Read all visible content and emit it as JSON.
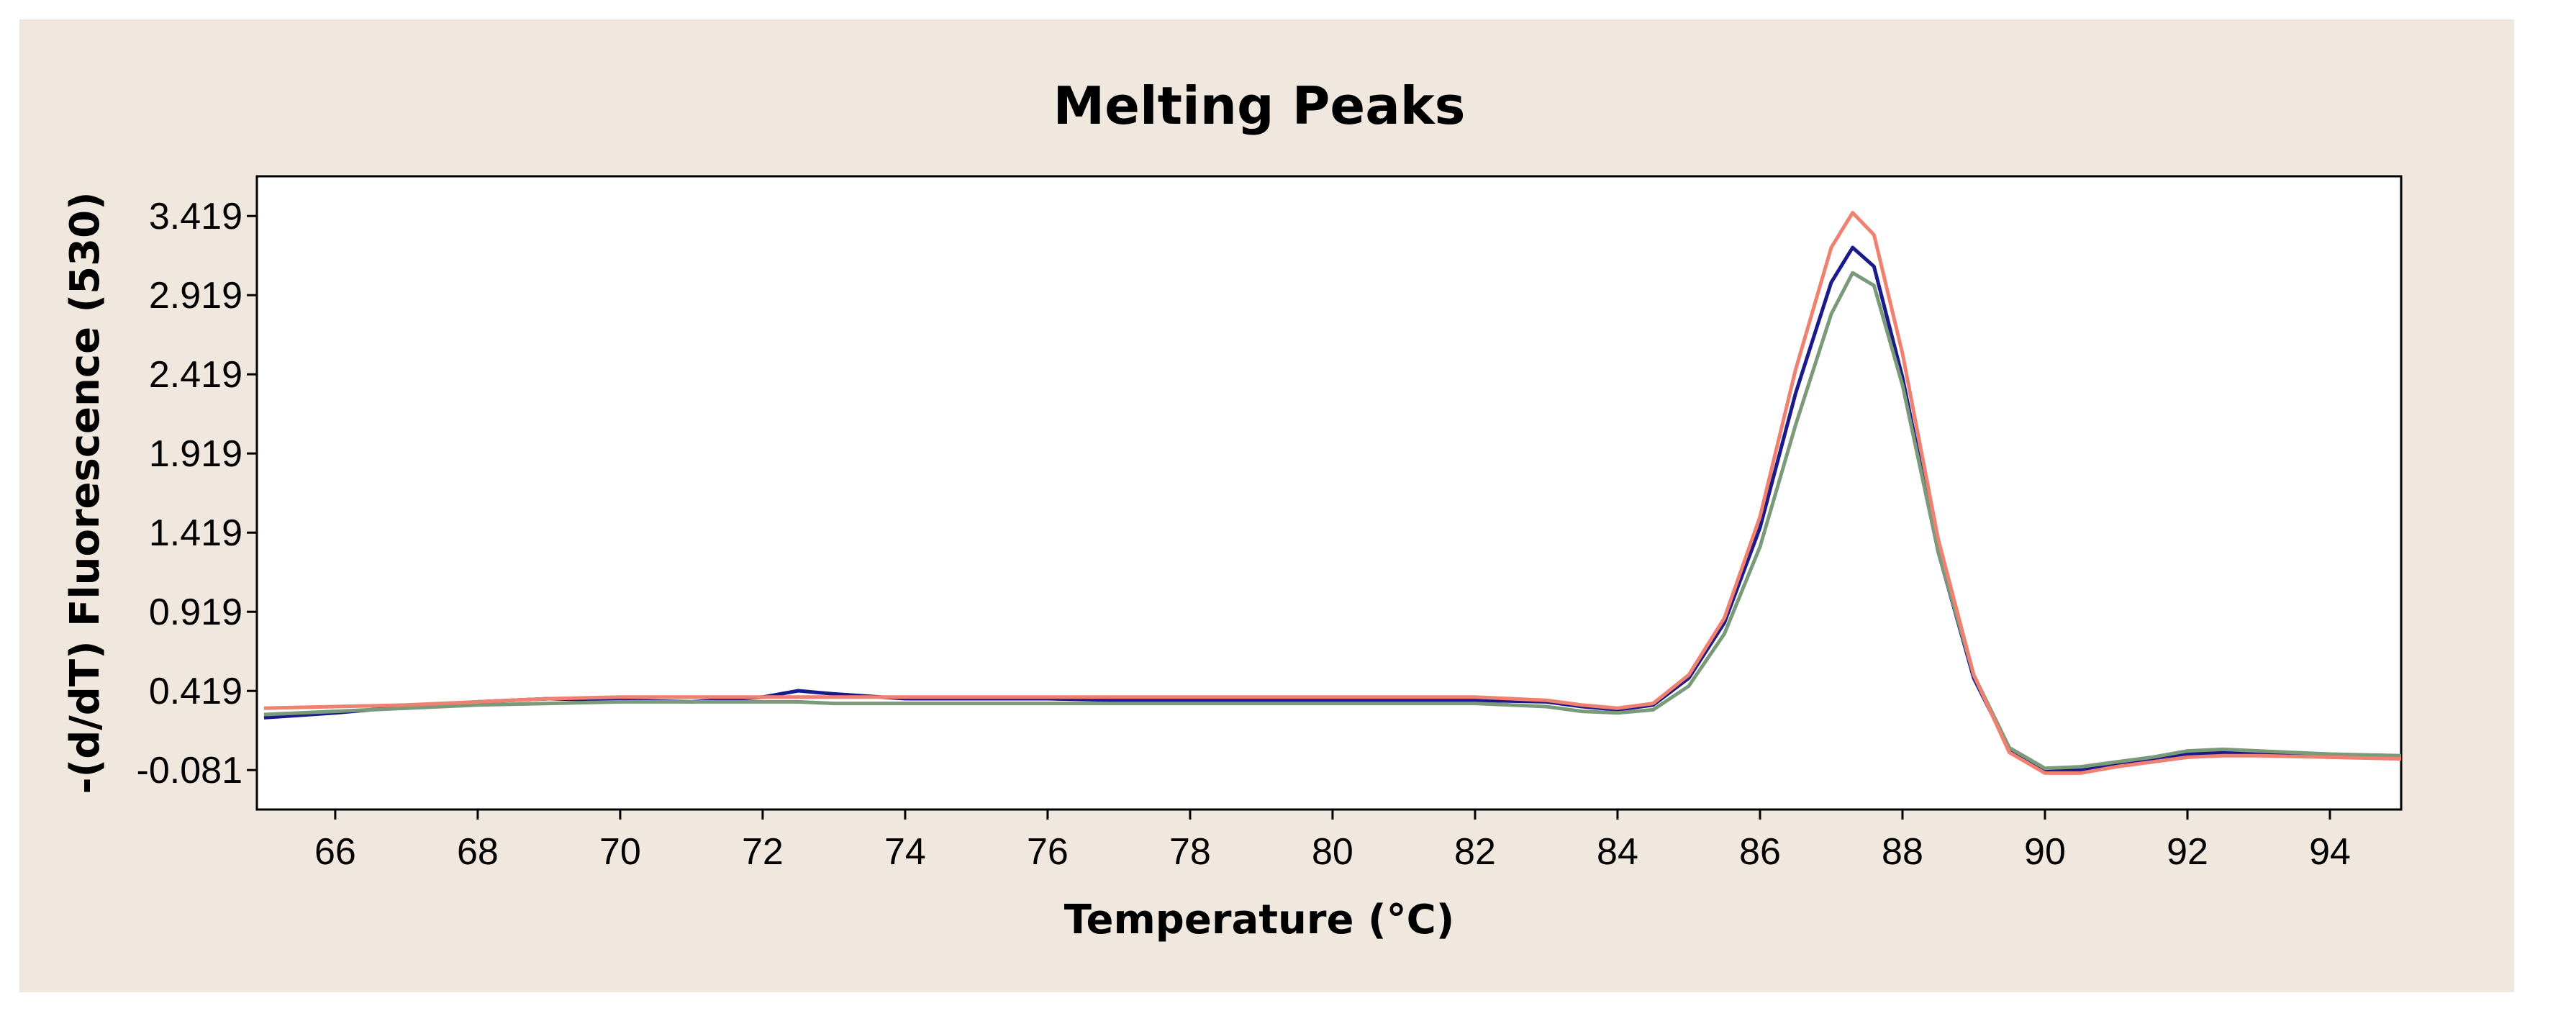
{
  "chart_data": {
    "type": "line",
    "title": "Melting Peaks",
    "xlabel": "Temperature (°C)",
    "ylabel": "-(d/dT) Fluorescence (530)",
    "xlim": [
      64.9,
      95.0
    ],
    "ylim": [
      -0.33,
      3.67
    ],
    "x_ticks": [
      66,
      68,
      70,
      72,
      74,
      76,
      78,
      80,
      82,
      84,
      86,
      88,
      90,
      92,
      94
    ],
    "x_tick_labels": [
      "66",
      "68",
      "70",
      "72",
      "74",
      "76",
      "78",
      "80",
      "82",
      "84",
      "86",
      "88",
      "90",
      "92",
      "94"
    ],
    "y_ticks": [
      -0.081,
      0.419,
      0.919,
      1.419,
      1.919,
      2.419,
      2.919,
      3.419
    ],
    "y_tick_labels": [
      "-0.081",
      "0.419",
      "0.919",
      "1.419",
      "1.919",
      "2.419",
      "2.919",
      "3.419"
    ],
    "grid": false,
    "legend": "none",
    "series": [
      {
        "color": "#1a1a8c",
        "x": [
          65,
          66,
          67,
          68,
          69,
          70,
          71,
          72,
          72.5,
          73,
          74,
          75,
          76,
          77,
          78,
          79,
          80,
          81,
          82,
          83,
          83.5,
          84,
          84.5,
          85,
          85.5,
          86,
          86.5,
          87,
          87.3,
          87.6,
          88,
          88.5,
          89,
          89.5,
          90,
          90.5,
          91,
          91.5,
          92,
          92.5,
          93,
          94,
          95
        ],
        "y": [
          0.25,
          0.28,
          0.32,
          0.35,
          0.37,
          0.36,
          0.35,
          0.38,
          0.42,
          0.4,
          0.37,
          0.37,
          0.37,
          0.36,
          0.36,
          0.36,
          0.36,
          0.36,
          0.36,
          0.35,
          0.32,
          0.3,
          0.33,
          0.5,
          0.85,
          1.45,
          2.3,
          3.0,
          3.22,
          3.1,
          2.4,
          1.3,
          0.5,
          0.05,
          -0.08,
          -0.08,
          -0.05,
          -0.02,
          0.02,
          0.03,
          0.03,
          0.01,
          0.0
        ]
      },
      {
        "color": "#7a9a7a",
        "x": [
          65,
          66,
          67,
          68,
          69,
          70,
          71,
          72,
          72.5,
          73,
          74,
          75,
          76,
          77,
          78,
          79,
          80,
          81,
          82,
          83,
          83.5,
          84,
          84.5,
          85,
          85.5,
          86,
          86.5,
          87,
          87.3,
          87.6,
          88,
          88.5,
          89,
          89.5,
          90,
          90.5,
          91,
          91.5,
          92,
          92.5,
          93,
          94,
          95
        ],
        "y": [
          0.27,
          0.29,
          0.31,
          0.33,
          0.34,
          0.35,
          0.35,
          0.35,
          0.35,
          0.34,
          0.34,
          0.34,
          0.34,
          0.34,
          0.34,
          0.34,
          0.34,
          0.34,
          0.34,
          0.32,
          0.29,
          0.28,
          0.3,
          0.45,
          0.78,
          1.33,
          2.1,
          2.8,
          3.06,
          2.98,
          2.35,
          1.3,
          0.52,
          0.06,
          -0.07,
          -0.06,
          -0.03,
          0.0,
          0.04,
          0.05,
          0.04,
          0.02,
          0.01
        ]
      },
      {
        "color": "#f08070",
        "x": [
          65,
          66,
          67,
          68,
          69,
          70,
          71,
          72,
          72.5,
          73,
          74,
          75,
          76,
          77,
          78,
          79,
          80,
          81,
          82,
          83,
          83.5,
          84,
          84.5,
          85,
          85.5,
          86,
          86.5,
          87,
          87.3,
          87.6,
          88,
          88.5,
          89,
          89.5,
          90,
          90.5,
          91,
          91.5,
          92,
          92.5,
          93,
          94,
          95
        ],
        "y": [
          0.31,
          0.32,
          0.33,
          0.35,
          0.37,
          0.38,
          0.38,
          0.38,
          0.38,
          0.38,
          0.38,
          0.38,
          0.38,
          0.38,
          0.38,
          0.38,
          0.38,
          0.38,
          0.38,
          0.36,
          0.33,
          0.31,
          0.34,
          0.52,
          0.88,
          1.52,
          2.45,
          3.22,
          3.44,
          3.3,
          2.55,
          1.38,
          0.52,
          0.03,
          -0.1,
          -0.1,
          -0.06,
          -0.03,
          0.0,
          0.01,
          0.01,
          0.0,
          -0.01
        ]
      }
    ]
  }
}
